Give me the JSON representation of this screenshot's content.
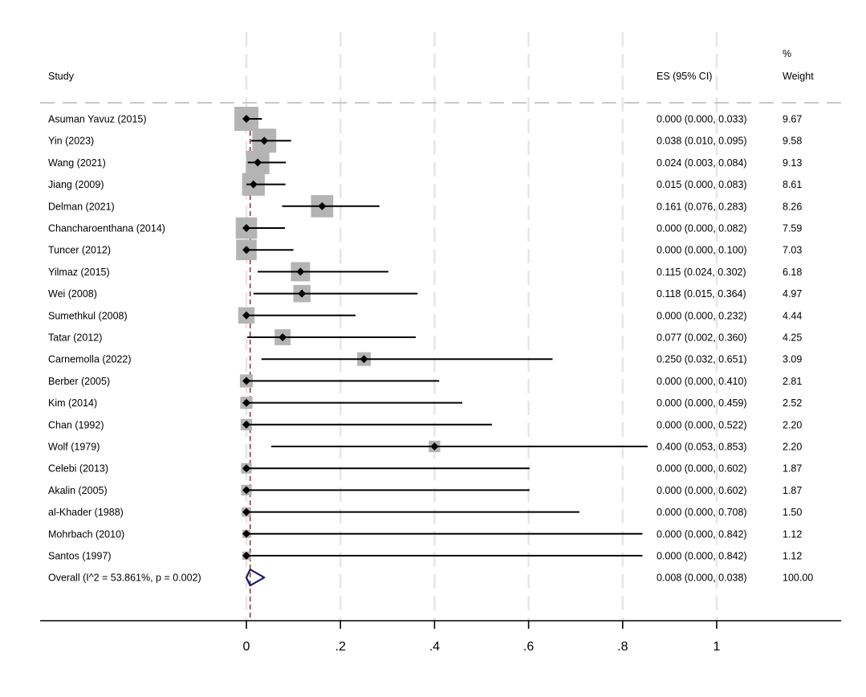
{
  "chart_data": {
    "type": "forest",
    "title": "",
    "xlabel": "",
    "ylabel": "",
    "xlim": [
      0,
      1
    ],
    "x_ticks": [
      0,
      0.2,
      0.4,
      0.6,
      0.8,
      1
    ],
    "x_tick_labels": [
      "0",
      ".2",
      ".4",
      ".6",
      ".8",
      "1"
    ],
    "grid": "vertical dashed light gray at ticks",
    "reference_line": {
      "value": 0.008,
      "style": "dashed",
      "color": "#8b3a3a"
    },
    "headers": {
      "study": "Study",
      "es": "ES (95% CI)",
      "weight_top": "%",
      "weight_bottom": "Weight"
    },
    "studies": [
      {
        "name": "Asuman Yavuz (2015)",
        "es": 0.0,
        "lo": 0.0,
        "hi": 0.033,
        "es_text": "0.000 (0.000, 0.033)",
        "weight": 9.67,
        "weight_text": "9.67"
      },
      {
        "name": "Yin (2023)",
        "es": 0.038,
        "lo": 0.01,
        "hi": 0.095,
        "es_text": "0.038 (0.010, 0.095)",
        "weight": 9.58,
        "weight_text": "9.58"
      },
      {
        "name": "Wang (2021)",
        "es": 0.024,
        "lo": 0.003,
        "hi": 0.084,
        "es_text": "0.024 (0.003, 0.084)",
        "weight": 9.13,
        "weight_text": "9.13"
      },
      {
        "name": "Jiang (2009)",
        "es": 0.015,
        "lo": 0.0,
        "hi": 0.083,
        "es_text": "0.015 (0.000, 0.083)",
        "weight": 8.61,
        "weight_text": "8.61"
      },
      {
        "name": "Delman (2021)",
        "es": 0.161,
        "lo": 0.076,
        "hi": 0.283,
        "es_text": "0.161 (0.076, 0.283)",
        "weight": 8.26,
        "weight_text": "8.26"
      },
      {
        "name": "Chancharoenthana (2014)",
        "es": 0.0,
        "lo": 0.0,
        "hi": 0.082,
        "es_text": "0.000 (0.000, 0.082)",
        "weight": 7.59,
        "weight_text": "7.59"
      },
      {
        "name": "Tuncer (2012)",
        "es": 0.0,
        "lo": 0.0,
        "hi": 0.1,
        "es_text": "0.000 (0.000, 0.100)",
        "weight": 7.03,
        "weight_text": "7.03"
      },
      {
        "name": "Yilmaz (2015)",
        "es": 0.115,
        "lo": 0.024,
        "hi": 0.302,
        "es_text": "0.115 (0.024, 0.302)",
        "weight": 6.18,
        "weight_text": "6.18"
      },
      {
        "name": "Wei (2008)",
        "es": 0.118,
        "lo": 0.015,
        "hi": 0.364,
        "es_text": "0.118 (0.015, 0.364)",
        "weight": 4.97,
        "weight_text": "4.97"
      },
      {
        "name": "Sumethkul (2008)",
        "es": 0.0,
        "lo": 0.0,
        "hi": 0.232,
        "es_text": "0.000 (0.000, 0.232)",
        "weight": 4.44,
        "weight_text": "4.44"
      },
      {
        "name": "Tatar (2012)",
        "es": 0.077,
        "lo": 0.002,
        "hi": 0.36,
        "es_text": "0.077 (0.002, 0.360)",
        "weight": 4.25,
        "weight_text": "4.25"
      },
      {
        "name": "Carnemolla (2022)",
        "es": 0.25,
        "lo": 0.032,
        "hi": 0.651,
        "es_text": "0.250 (0.032, 0.651)",
        "weight": 3.09,
        "weight_text": "3.09"
      },
      {
        "name": "Berber (2005)",
        "es": 0.0,
        "lo": 0.0,
        "hi": 0.41,
        "es_text": "0.000 (0.000, 0.410)",
        "weight": 2.81,
        "weight_text": "2.81"
      },
      {
        "name": "Kim (2014)",
        "es": 0.0,
        "lo": 0.0,
        "hi": 0.459,
        "es_text": "0.000 (0.000, 0.459)",
        "weight": 2.52,
        "weight_text": "2.52"
      },
      {
        "name": "Chan (1992)",
        "es": 0.0,
        "lo": 0.0,
        "hi": 0.522,
        "es_text": "0.000 (0.000, 0.522)",
        "weight": 2.2,
        "weight_text": "2.20"
      },
      {
        "name": "Wolf (1979)",
        "es": 0.4,
        "lo": 0.053,
        "hi": 0.853,
        "es_text": "0.400 (0.053, 0.853)",
        "weight": 2.2,
        "weight_text": "2.20"
      },
      {
        "name": "Celebi (2013)",
        "es": 0.0,
        "lo": 0.0,
        "hi": 0.602,
        "es_text": "0.000 (0.000, 0.602)",
        "weight": 1.87,
        "weight_text": "1.87"
      },
      {
        "name": "Akalin (2005)",
        "es": 0.0,
        "lo": 0.0,
        "hi": 0.602,
        "es_text": "0.000 (0.000, 0.602)",
        "weight": 1.87,
        "weight_text": "1.87"
      },
      {
        "name": "al-Khader (1988)",
        "es": 0.0,
        "lo": 0.0,
        "hi": 0.708,
        "es_text": "0.000 (0.000, 0.708)",
        "weight": 1.5,
        "weight_text": "1.50"
      },
      {
        "name": "Mohrbach (2010)",
        "es": 0.0,
        "lo": 0.0,
        "hi": 0.842,
        "es_text": "0.000 (0.000, 0.842)",
        "weight": 1.12,
        "weight_text": "1.12"
      },
      {
        "name": "Santos (1997)",
        "es": 0.0,
        "lo": 0.0,
        "hi": 0.842,
        "es_text": "0.000 (0.000, 0.842)",
        "weight": 1.12,
        "weight_text": "1.12"
      }
    ],
    "overall": {
      "name": "Overall  (I^2 = 53.861%, p = 0.002)",
      "es": 0.008,
      "lo": 0.0,
      "hi": 0.038,
      "es_text": "0.008 (0.000, 0.038)",
      "weight_text": "100.00",
      "i2": 53.861,
      "p": 0.002
    },
    "colors": {
      "box": "#b4b4b4",
      "point": "#000000",
      "ci_line": "#000000",
      "reference": "#8b3a3a",
      "overall_diamond": "#1a1a6e",
      "grid": "#e6e6e6",
      "header_divider": "#c8c8c8"
    }
  }
}
